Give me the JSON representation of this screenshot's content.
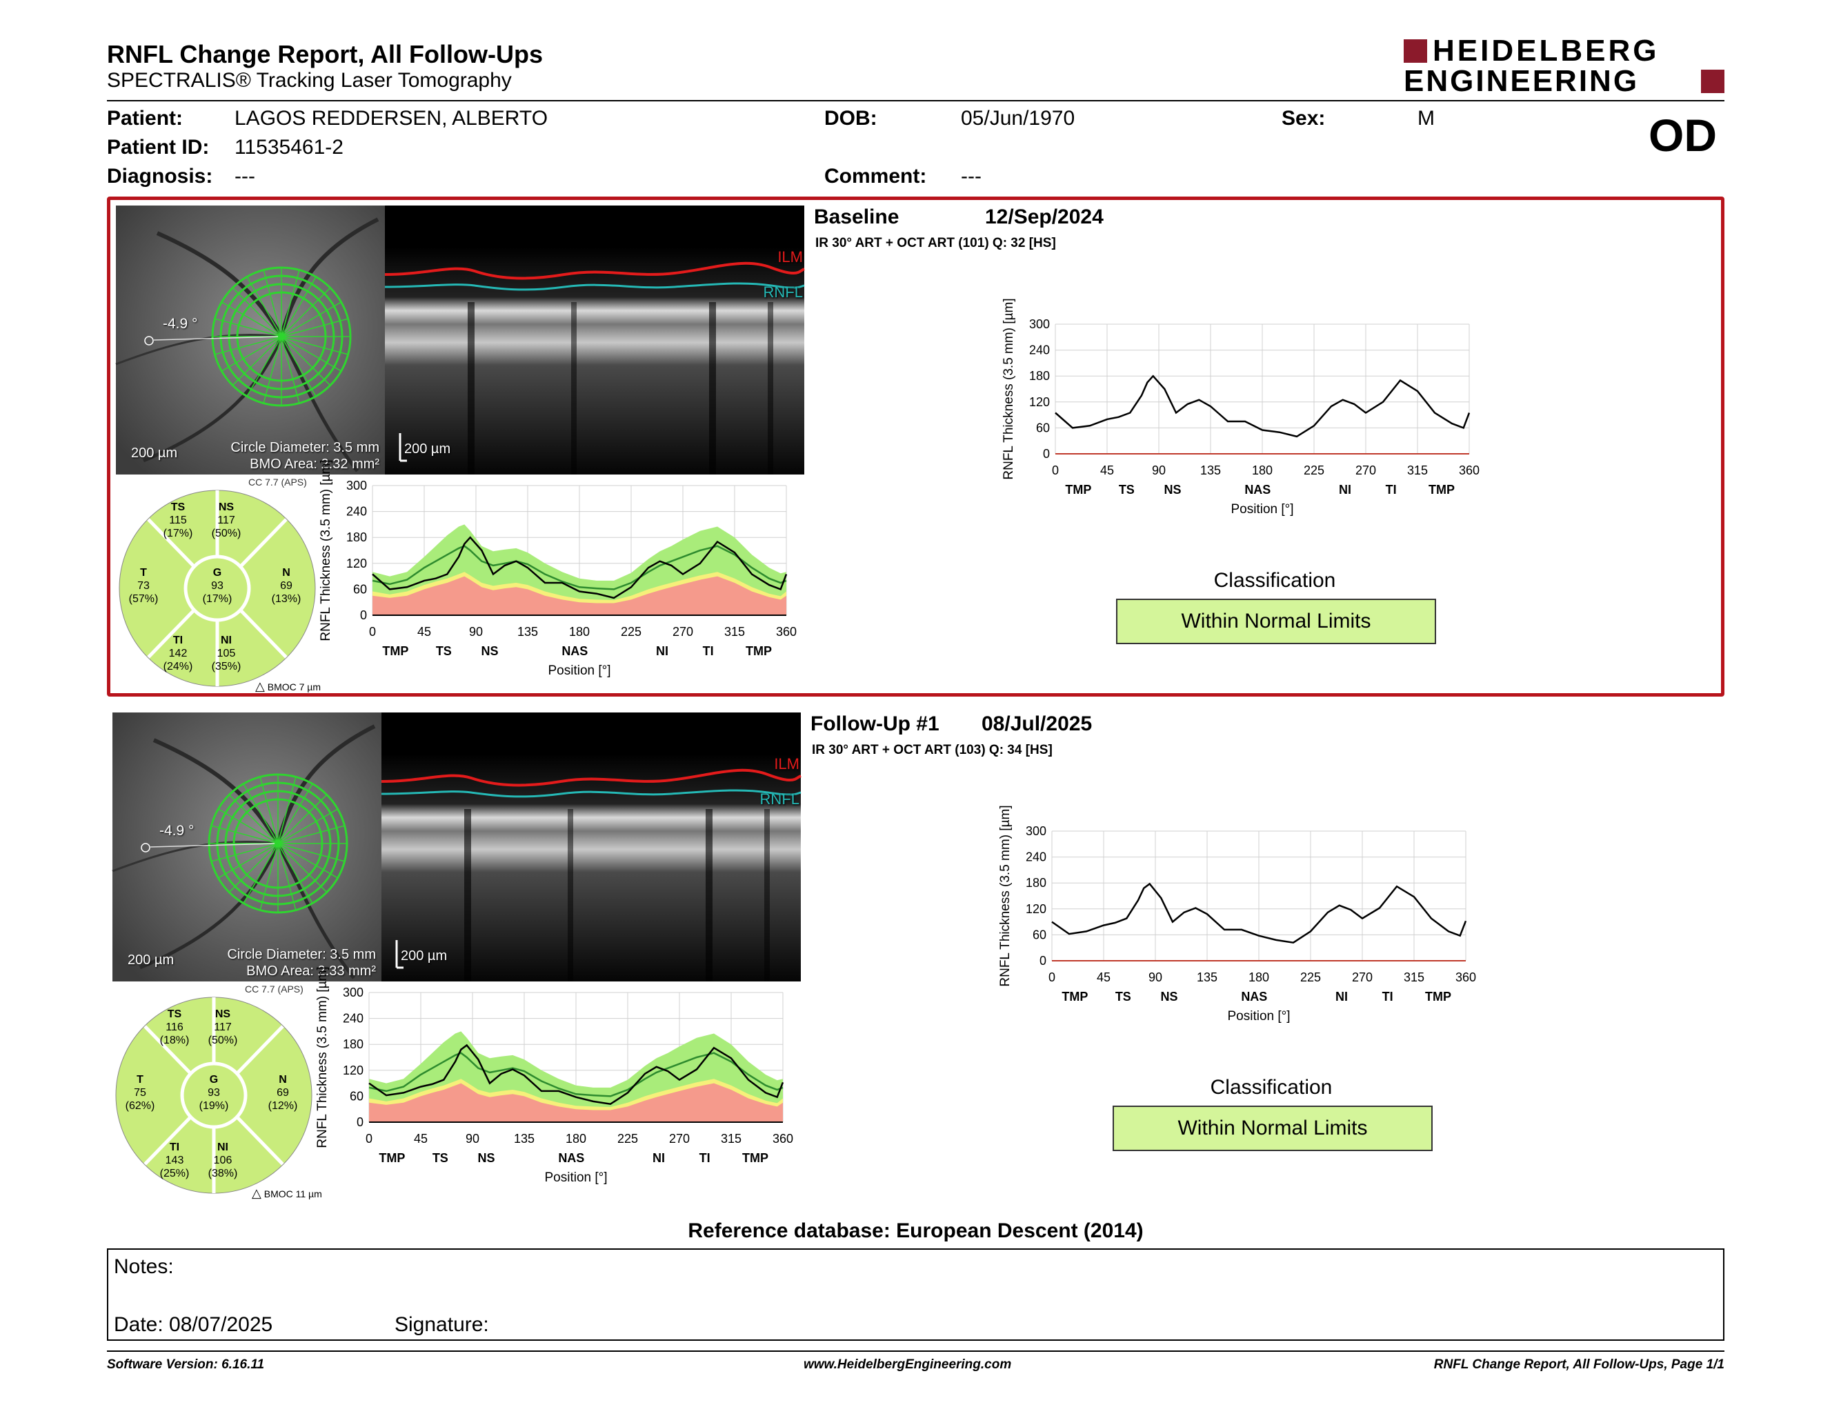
{
  "header": {
    "title": "RNFL Change Report, All Follow-Ups",
    "subtitle": "SPECTRALIS® Tracking Laser Tomography",
    "logo_line1": "HEIDELBERG",
    "logo_line2": "ENGINEERING",
    "eye": "OD",
    "colors": {
      "brand_red": "#8b1a2b",
      "frame_red": "#b8141c",
      "wnl_green": "#d4f59a"
    }
  },
  "patient": {
    "patient_label": "Patient:",
    "patient_value": "LAGOS REDDERSEN, ALBERTO",
    "id_label": "Patient ID:",
    "id_value": "11535461-2",
    "diagnosis_label": "Diagnosis:",
    "diagnosis_value": "---",
    "dob_label": "DOB:",
    "dob_value": "05/Jun/1970",
    "comment_label": "Comment:",
    "comment_value": "---",
    "sex_label": "Sex:",
    "sex_value": "M"
  },
  "exams": [
    {
      "title": "Baseline",
      "date": "12/Sep/2024",
      "acq": "IR 30° ART + OCT ART (101) Q: 32 [HS]",
      "angle": "-4.9 °",
      "scale": "200 µm",
      "circle_diameter": "Circle Diameter: 3.5 mm",
      "bmo_area": "BMO Area: 2.32 mm²",
      "cc": "CC 7.7 (APS)",
      "oct_scale": "200 µm",
      "ilm": "ILM",
      "rnfl": "RNFL",
      "bmoc": "BMOC 7 µm",
      "sectors": {
        "TS": {
          "name": "TS",
          "value": "115",
          "pct": "(17%)"
        },
        "NS": {
          "name": "NS",
          "value": "117",
          "pct": "(50%)"
        },
        "T": {
          "name": "T",
          "value": "73",
          "pct": "(57%)"
        },
        "G": {
          "name": "G",
          "value": "93",
          "pct": "(17%)"
        },
        "N": {
          "name": "N",
          "value": "69",
          "pct": "(13%)"
        },
        "TI": {
          "name": "TI",
          "value": "142",
          "pct": "(24%)"
        },
        "NI": {
          "name": "NI",
          "value": "105",
          "pct": "(35%)"
        }
      },
      "classification_label": "Classification",
      "classification": "Within Normal Limits"
    },
    {
      "title": "Follow-Up #1",
      "date": "08/Jul/2025",
      "acq": "IR 30° ART + OCT ART (103) Q: 34 [HS]",
      "angle": "-4.9 °",
      "scale": "200 µm",
      "circle_diameter": "Circle Diameter: 3.5 mm",
      "bmo_area": "BMO Area: 2.33 mm²",
      "cc": "CC 7.7 (APS)",
      "oct_scale": "200 µm",
      "ilm": "ILM",
      "rnfl": "RNFL",
      "bmoc": "BMOC 11 µm",
      "sectors": {
        "TS": {
          "name": "TS",
          "value": "116",
          "pct": "(18%)"
        },
        "NS": {
          "name": "NS",
          "value": "117",
          "pct": "(50%)"
        },
        "T": {
          "name": "T",
          "value": "75",
          "pct": "(62%)"
        },
        "G": {
          "name": "G",
          "value": "93",
          "pct": "(19%)"
        },
        "N": {
          "name": "N",
          "value": "69",
          "pct": "(12%)"
        },
        "TI": {
          "name": "TI",
          "value": "143",
          "pct": "(25%)"
        },
        "NI": {
          "name": "NI",
          "value": "106",
          "pct": "(38%)"
        }
      },
      "classification_label": "Classification",
      "classification": "Within Normal Limits"
    }
  ],
  "chart_data": [
    {
      "type": "line",
      "name": "Baseline RNFL thickness (with normative bands)",
      "ylabel": "RNFL Thickness (3.5 mm) [µm]",
      "xlabel": "Position [°]",
      "xlim": [
        0,
        360
      ],
      "ylim": [
        0,
        300
      ],
      "xticks": [
        "0",
        "45",
        "90",
        "135",
        "180",
        "225",
        "270",
        "315",
        "360"
      ],
      "yticks": [
        "0",
        "60",
        "120",
        "180",
        "240",
        "300"
      ],
      "sector_labels": [
        {
          "x": 10,
          "t": "TMP"
        },
        {
          "x": 31,
          "t": "TS"
        },
        {
          "x": 51,
          "t": "NS"
        },
        {
          "x": 88,
          "t": "NAS"
        },
        {
          "x": 126,
          "t": "NI"
        },
        {
          "x": 146,
          "t": "TI"
        },
        {
          "x": 168,
          "t": "TMP"
        }
      ],
      "x": [
        0,
        15,
        30,
        45,
        55,
        65,
        75,
        80,
        85,
        95,
        105,
        115,
        125,
        135,
        150,
        165,
        180,
        195,
        210,
        225,
        240,
        250,
        260,
        270,
        285,
        300,
        315,
        330,
        345,
        355,
        360
      ],
      "thickness": [
        95,
        60,
        65,
        80,
        85,
        95,
        135,
        165,
        180,
        150,
        95,
        115,
        125,
        110,
        75,
        75,
        55,
        50,
        40,
        65,
        110,
        125,
        115,
        95,
        120,
        170,
        145,
        95,
        70,
        60,
        95
      ],
      "normal_mean": [
        80,
        72,
        82,
        110,
        125,
        140,
        155,
        160,
        150,
        125,
        115,
        120,
        125,
        118,
        95,
        78,
        65,
        62,
        60,
        75,
        100,
        115,
        125,
        135,
        150,
        160,
        140,
        110,
        85,
        75,
        80
      ],
      "wnl_upper": [
        100,
        90,
        100,
        135,
        160,
        185,
        205,
        210,
        195,
        160,
        148,
        152,
        155,
        145,
        120,
        100,
        85,
        80,
        80,
        98,
        130,
        148,
        160,
        175,
        195,
        205,
        180,
        140,
        110,
        97,
        100
      ],
      "borderline_upper": [
        55,
        48,
        55,
        70,
        78,
        85,
        95,
        100,
        92,
        75,
        68,
        72,
        75,
        70,
        55,
        45,
        38,
        36,
        35,
        45,
        60,
        68,
        75,
        82,
        92,
        100,
        85,
        65,
        50,
        44,
        55
      ],
      "outside_upper": [
        45,
        40,
        45,
        60,
        68,
        75,
        85,
        90,
        82,
        65,
        58,
        62,
        65,
        60,
        45,
        36,
        30,
        28,
        28,
        36,
        50,
        58,
        65,
        72,
        82,
        90,
        75,
        55,
        42,
        36,
        45
      ]
    },
    {
      "type": "line",
      "name": "Baseline RNFL thickness",
      "ylabel": "RNFL Thickness (3.5 mm) [µm]",
      "xlabel": "Position [°]",
      "xlim": [
        0,
        360
      ],
      "ylim": [
        0,
        300
      ],
      "x": [
        0,
        15,
        30,
        45,
        55,
        65,
        75,
        80,
        85,
        95,
        105,
        115,
        125,
        135,
        150,
        165,
        180,
        195,
        210,
        225,
        240,
        250,
        260,
        270,
        285,
        300,
        315,
        330,
        345,
        355,
        360
      ],
      "thickness": [
        95,
        60,
        65,
        80,
        85,
        95,
        135,
        165,
        180,
        150,
        95,
        115,
        125,
        110,
        75,
        75,
        55,
        50,
        40,
        65,
        110,
        125,
        115,
        95,
        120,
        170,
        145,
        95,
        70,
        60,
        95
      ]
    },
    {
      "type": "line",
      "name": "Follow-Up #1 RNFL thickness (with normative bands)",
      "ylabel": "RNFL Thickness (3.5 mm) [µm]",
      "xlabel": "Position [°]",
      "xlim": [
        0,
        360
      ],
      "ylim": [
        0,
        300
      ],
      "x": [
        0,
        15,
        30,
        45,
        55,
        65,
        75,
        80,
        85,
        95,
        105,
        115,
        125,
        135,
        150,
        165,
        180,
        195,
        210,
        225,
        240,
        250,
        260,
        270,
        285,
        300,
        315,
        330,
        345,
        355,
        360
      ],
      "thickness": [
        90,
        62,
        68,
        82,
        88,
        98,
        140,
        168,
        178,
        145,
        90,
        112,
        122,
        108,
        72,
        72,
        58,
        48,
        42,
        68,
        112,
        128,
        118,
        98,
        122,
        172,
        148,
        98,
        68,
        58,
        92
      ],
      "normal_mean": [
        80,
        72,
        82,
        110,
        125,
        140,
        155,
        160,
        150,
        125,
        115,
        120,
        125,
        118,
        95,
        78,
        65,
        62,
        60,
        75,
        100,
        115,
        125,
        135,
        150,
        160,
        140,
        110,
        85,
        75,
        80
      ],
      "wnl_upper": [
        100,
        90,
        100,
        135,
        160,
        185,
        205,
        210,
        195,
        160,
        148,
        152,
        155,
        145,
        120,
        100,
        85,
        80,
        80,
        98,
        130,
        148,
        160,
        175,
        195,
        205,
        180,
        140,
        110,
        97,
        100
      ],
      "borderline_upper": [
        55,
        48,
        55,
        70,
        78,
        85,
        95,
        100,
        92,
        75,
        68,
        72,
        75,
        70,
        55,
        45,
        38,
        36,
        35,
        45,
        60,
        68,
        75,
        82,
        92,
        100,
        85,
        65,
        50,
        44,
        55
      ],
      "outside_upper": [
        45,
        40,
        45,
        60,
        68,
        75,
        85,
        90,
        82,
        65,
        58,
        62,
        65,
        60,
        45,
        36,
        30,
        28,
        28,
        36,
        50,
        58,
        65,
        72,
        82,
        90,
        75,
        55,
        42,
        36,
        45
      ]
    },
    {
      "type": "line",
      "name": "Follow-Up #1 RNFL thickness",
      "ylabel": "RNFL Thickness (3.5 mm) [µm]",
      "xlabel": "Position [°]",
      "xlim": [
        0,
        360
      ],
      "ylim": [
        0,
        300
      ],
      "x": [
        0,
        15,
        30,
        45,
        55,
        65,
        75,
        80,
        85,
        95,
        105,
        115,
        125,
        135,
        150,
        165,
        180,
        195,
        210,
        225,
        240,
        250,
        260,
        270,
        285,
        300,
        315,
        330,
        345,
        355,
        360
      ],
      "thickness": [
        90,
        62,
        68,
        82,
        88,
        98,
        140,
        168,
        178,
        145,
        90,
        112,
        122,
        108,
        72,
        72,
        58,
        48,
        42,
        68,
        112,
        128,
        118,
        98,
        122,
        172,
        148,
        98,
        68,
        58,
        92
      ]
    }
  ],
  "reference_db": "Reference database: European Descent (2014)",
  "notes": {
    "notes_label": "Notes:",
    "date_label": "Date: 08/07/2025",
    "signature_label": "Signature:"
  },
  "footer": {
    "left": "Software Version: 6.16.11",
    "center": "www.HeidelbergEngineering.com",
    "right": "RNFL Change Report, All Follow-Ups, Page 1/1"
  }
}
